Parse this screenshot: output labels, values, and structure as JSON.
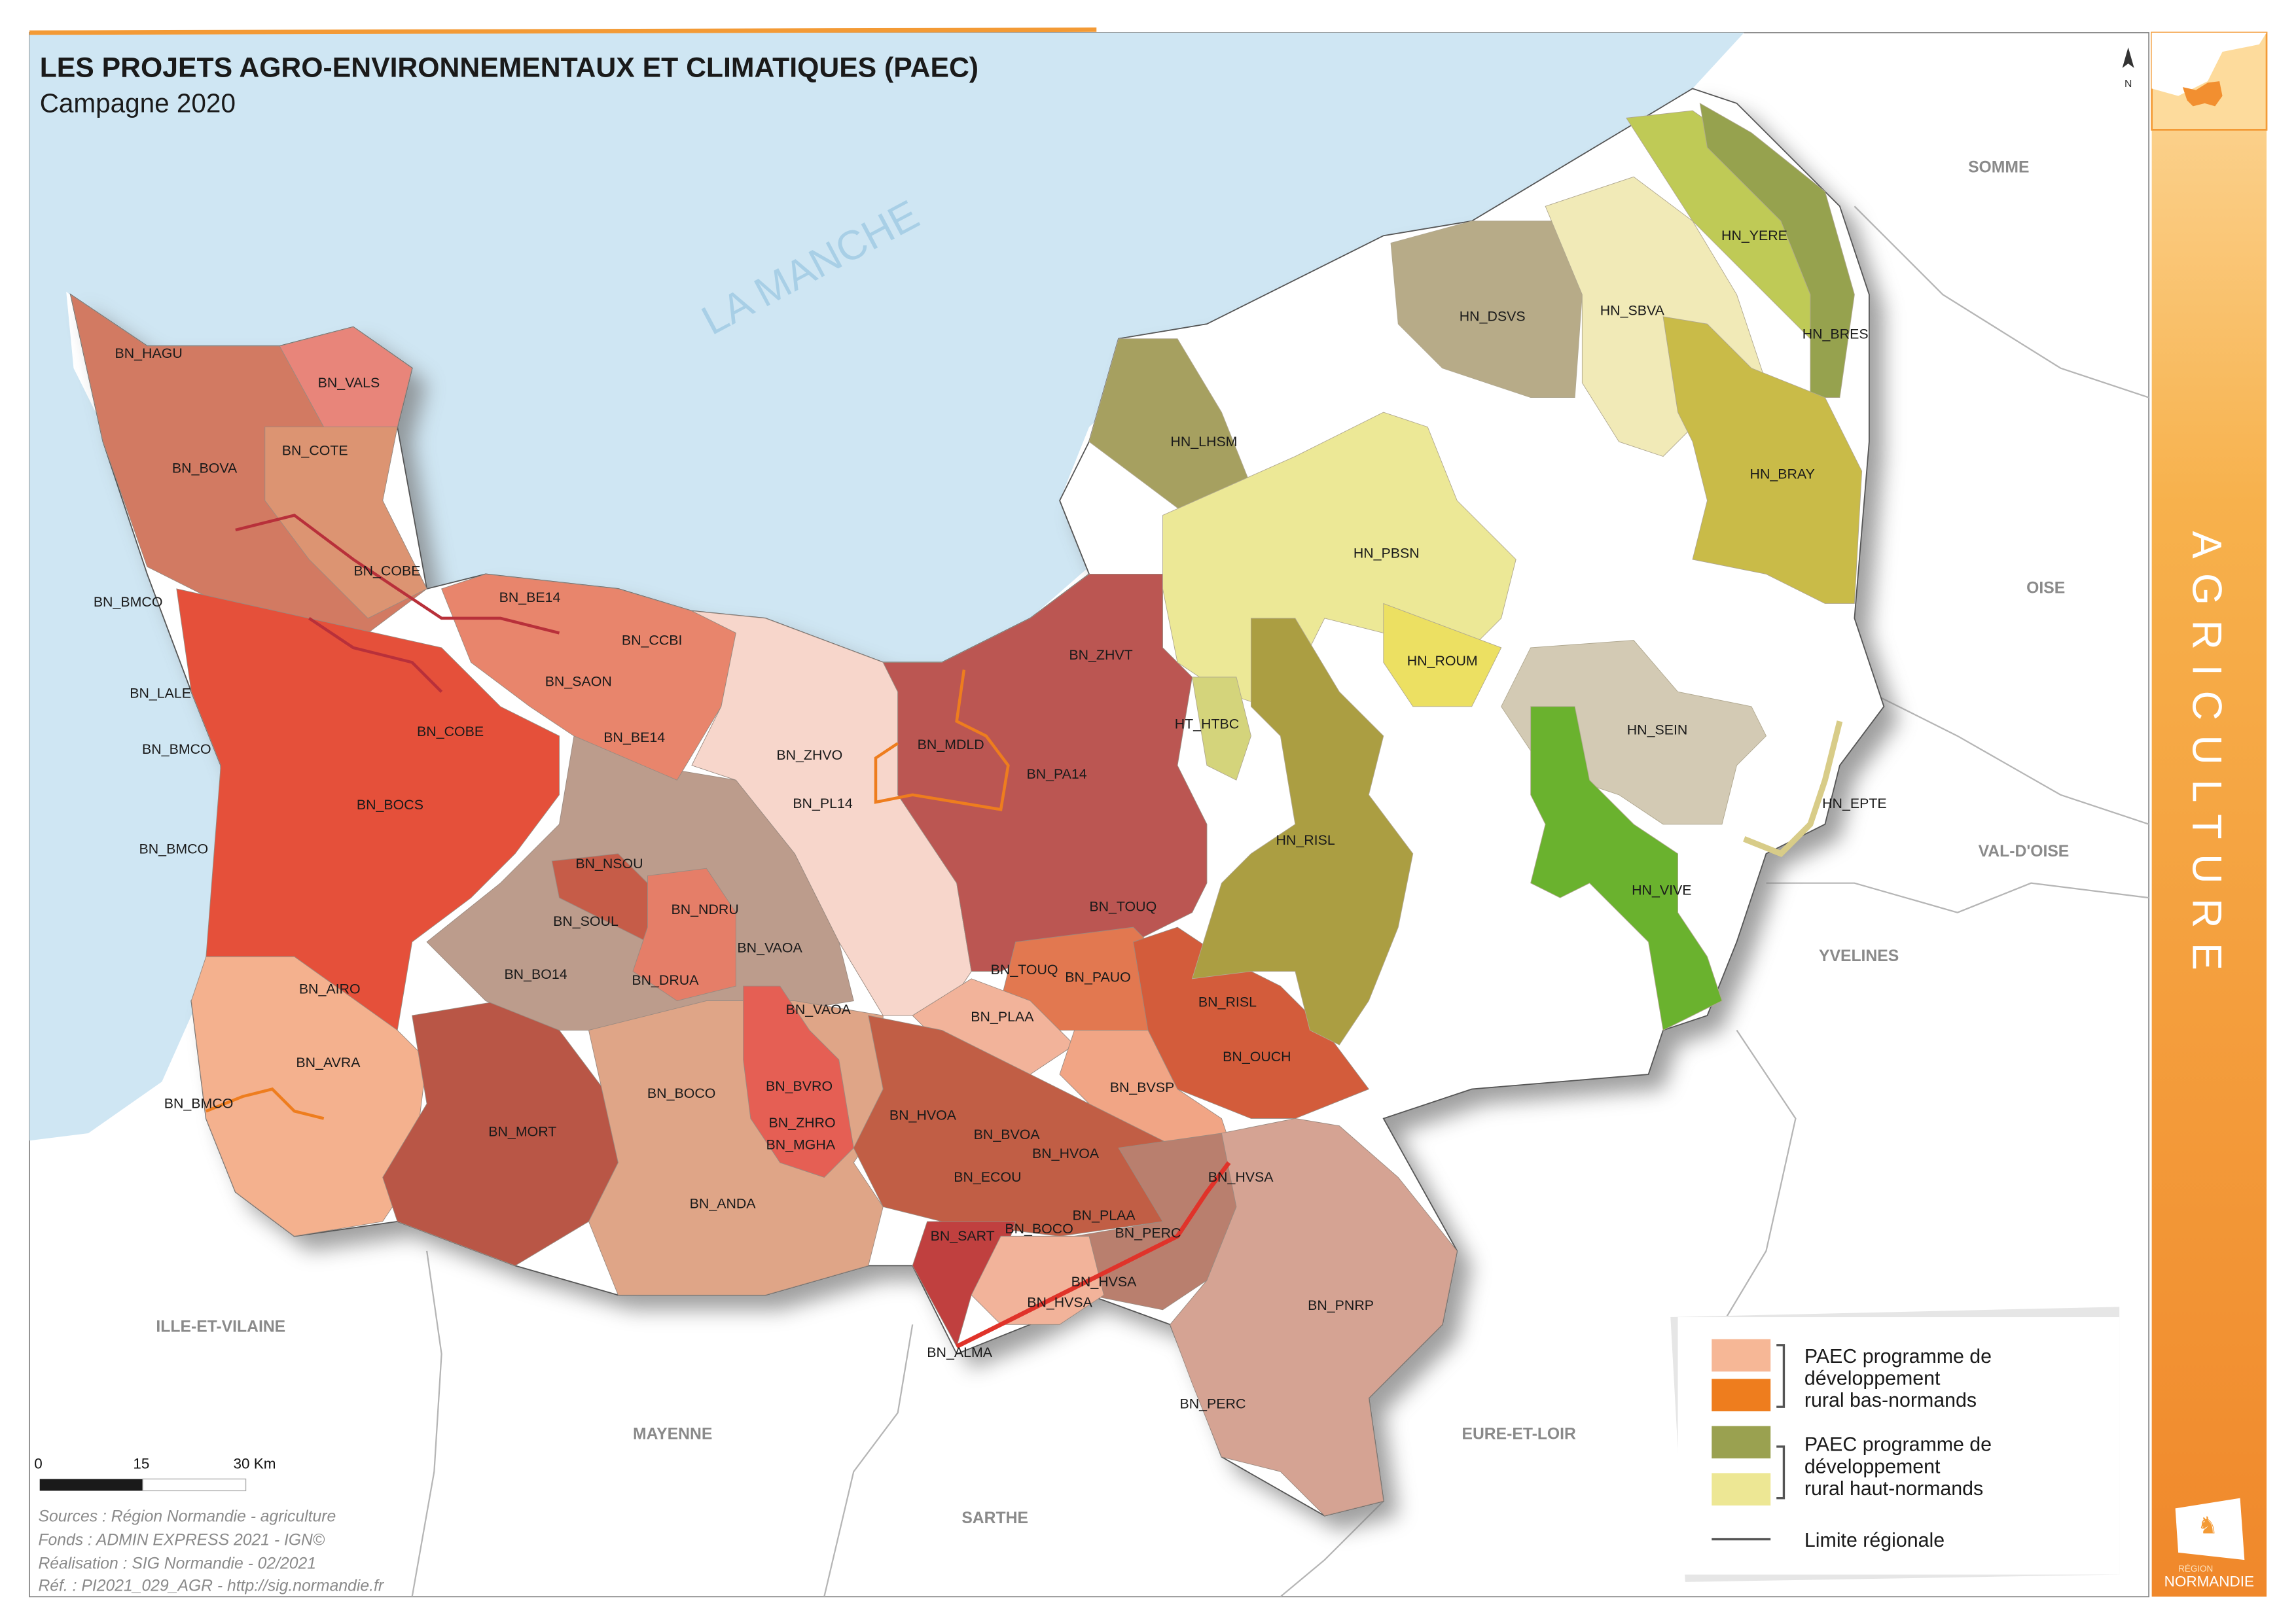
{
  "header": {
    "title": "LES PROJETS AGRO-ENVIRONNEMENTAUX ET CLIMATIQUES (PAEC)",
    "subtitle": "Campagne 2020"
  },
  "sidebar": {
    "theme_label": "AGRICULTURE",
    "logo_region": "RÉGION",
    "logo_name": "NORMANDIE",
    "color": "#f39a35"
  },
  "map": {
    "sea_label": "LA MANCHE",
    "north_label": "N",
    "departments": [
      "SOMME",
      "OISE",
      "VAL-D'OISE",
      "YVELINES",
      "ILLE-ET-VILAINE",
      "MAYENNE",
      "EURE-ET-LOIR",
      "SARTHE"
    ],
    "zone_labels": [
      "BN_HAGU",
      "BN_VALS",
      "BN_COTE",
      "BN_BOVA",
      "BN_COBE",
      "BN_BMCO",
      "BN_BE14",
      "BN_CCBI",
      "BN_SAON",
      "BN_LALE",
      "BN_COBE",
      "BN_BE14",
      "BN_BMCO",
      "BN_BOCS",
      "BN_BMCO",
      "BN_NSOU",
      "BN_SOUL",
      "BN_NDRU",
      "BN_VAOA",
      "BN_BO14",
      "BN_DRUA",
      "BN_AIRO",
      "BN_VAOA",
      "BN_AVRA",
      "BN_BMCO",
      "BN_MORT",
      "BN_BOCO",
      "BN_BVRO",
      "BN_ZHRO",
      "BN_MGHA",
      "BN_ANDA",
      "BN_ZHVO",
      "BN_PL14",
      "BN_MDLD",
      "BN_PA14",
      "BN_ZHVT",
      "BN_TOUQ",
      "BN_TOUQ",
      "BN_PAUO",
      "BN_PLAA",
      "BN_RISL",
      "BN_OUCH",
      "BN_BVSP",
      "BN_HVOA",
      "BN_BVOA",
      "BN_HVOA",
      "BN_ECOU",
      "BN_HVSA",
      "BN_PLAA",
      "BN_PERC",
      "BN_BOCO",
      "BN_SART",
      "BN_HVSA",
      "BN_HVSA",
      "BN_ALMA",
      "BN_PNRP",
      "BN_PERC",
      "HN_YERE",
      "HN_DSVS",
      "HN_SBVA",
      "HN_BRES",
      "HN_LHSM",
      "HN_BRAY",
      "HN_PBSN",
      "HN_ROUM",
      "HT_HTBC",
      "HN_SEIN",
      "HN_EPTE",
      "HN_RISL",
      "HN_VIVE"
    ],
    "colors": {
      "sea": "#cfe6f3",
      "region_border": "#555555"
    }
  },
  "legend": {
    "items": [
      {
        "label_lines": [
          "PAEC programme de",
          "développement",
          "rural bas-normands"
        ],
        "colors": [
          "#f6b796",
          "#ee7d1e"
        ]
      },
      {
        "label_lines": [
          "PAEC programme de",
          "développement",
          "rural haut-normands"
        ],
        "colors": [
          "#9aa150",
          "#ede794"
        ]
      }
    ],
    "line_label": "Limite régionale"
  },
  "scale_bar": {
    "ticks": [
      "0",
      "15",
      "30 Km"
    ]
  },
  "sources": [
    "Sources : Région Normandie - agriculture",
    "Fonds : ADMIN EXPRESS 2021 - IGN©",
    "Réalisation : SIG Normandie - 02/2021",
    "Réf. : PI2021_029_AGR - http://sig.normandie.fr"
  ]
}
